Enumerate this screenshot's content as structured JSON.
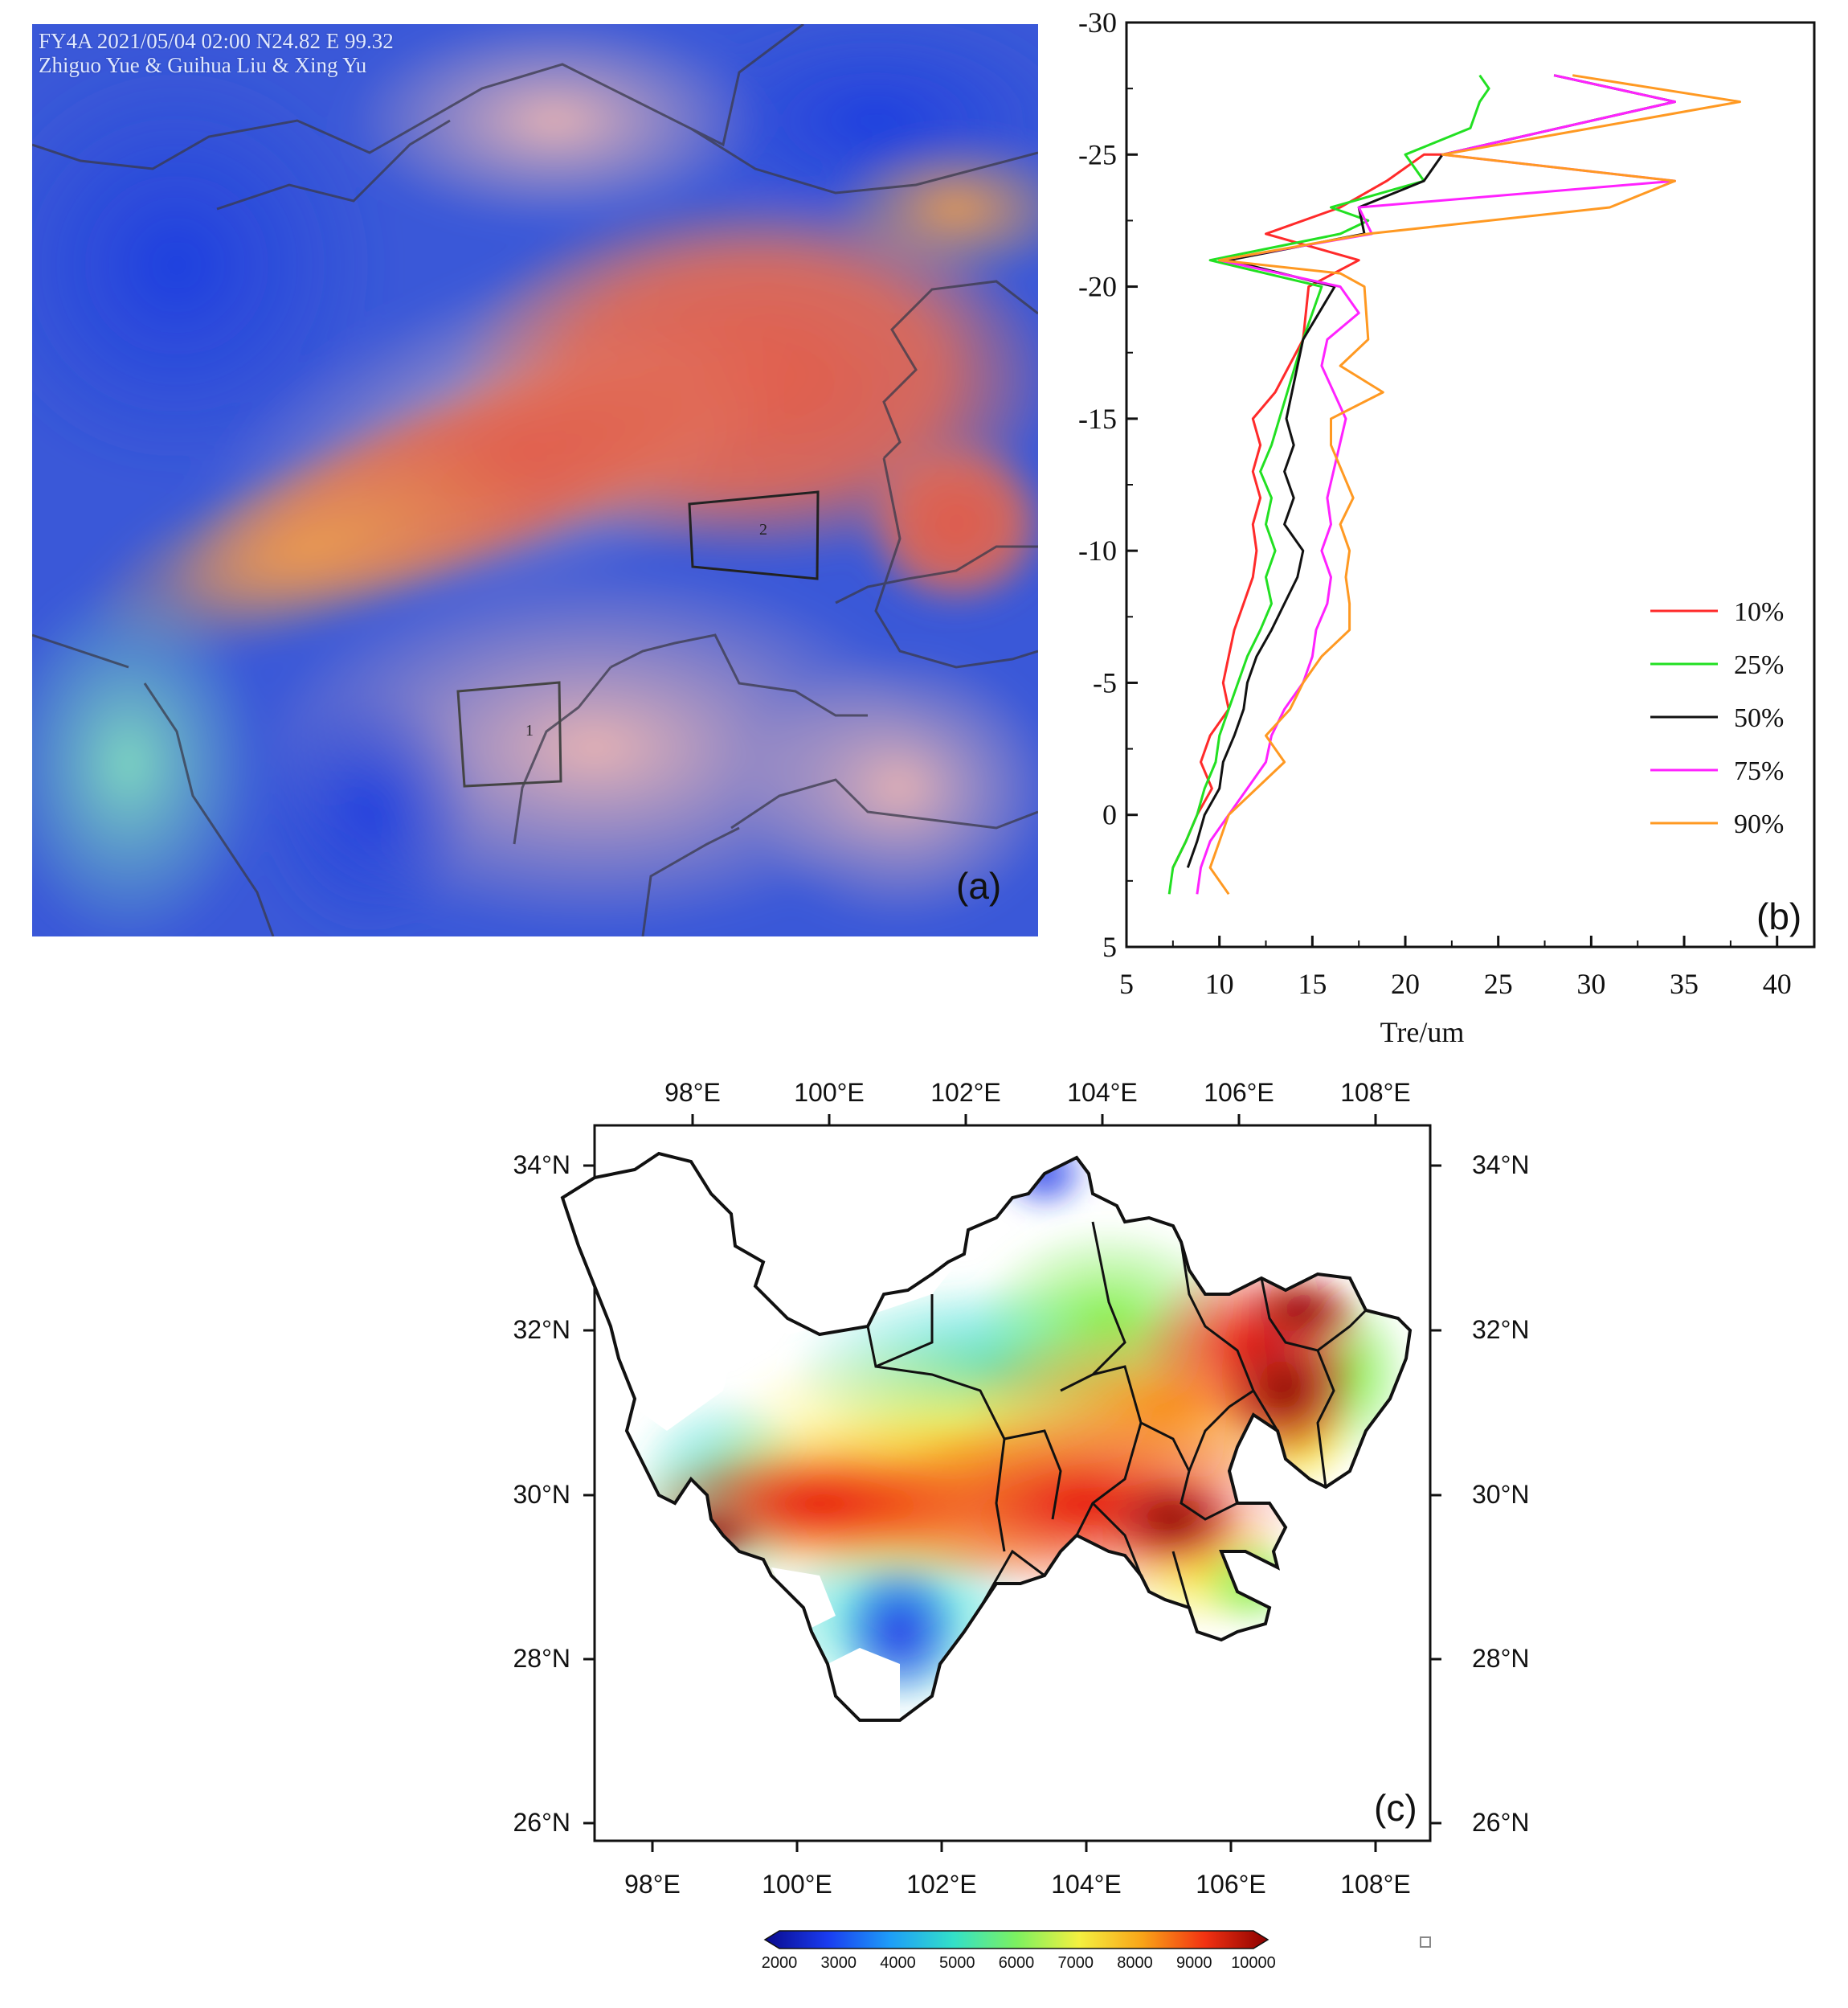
{
  "panel_a": {
    "header_line1": "FY4A 2021/05/04 02:00  N24.82 E 99.32",
    "header_line2": "Zhiguo Yue & Guihua Liu & Xing Yu",
    "box_1_label": "1",
    "box_2_label": "2",
    "panel_label": "(a)"
  },
  "panel_c": {
    "panel_label": "(c)",
    "colorbar_ticks": [
      "2000",
      "3000",
      "4000",
      "5000",
      "6000",
      "7000",
      "8000",
      "9000",
      "10000"
    ],
    "colorbar_colors": [
      "#0a0a8c",
      "#1a3cf0",
      "#1e9ef8",
      "#33e0c8",
      "#7cf060",
      "#f4f040",
      "#f9a418",
      "#f23212",
      "#8b0000"
    ],
    "x_ticks_top": [
      "98°E",
      "100°E",
      "102°E",
      "104°E",
      "106°E",
      "108°E"
    ],
    "x_ticks_bottom": [
      "98°E",
      "100°E",
      "102°E",
      "104°E",
      "106°E",
      "108°E"
    ],
    "y_ticks_left": [
      "34°N",
      "32°N",
      "30°N",
      "28°N",
      "26°N"
    ],
    "y_ticks_right": [
      "34°N",
      "32°N",
      "30°N",
      "28°N",
      "26°N"
    ]
  },
  "chart_data": [
    {
      "type": "line",
      "panel_label": "(b)",
      "xlabel": "Tre/um",
      "ylabel": "",
      "xlim": [
        5,
        42
      ],
      "ylim": [
        5,
        -30
      ],
      "y_inverted": true,
      "x_ticks": [
        "5",
        "10",
        "15",
        "20",
        "25",
        "30",
        "35",
        "40"
      ],
      "y_ticks": [
        "-30",
        "-25",
        "-20",
        "-15",
        "-10",
        "-5",
        "0",
        "5"
      ],
      "legend_position": "lower-right",
      "series": [
        {
          "name": "10%",
          "color": "#ff2a2a",
          "x": [
            7.5,
            8.2,
            8.8,
            9.6,
            9.0,
            9.5,
            10.5,
            10.2,
            10.5,
            10.8,
            11.3,
            11.8,
            12.0,
            11.8,
            12.2,
            11.8,
            12.2,
            11.8,
            13.0,
            14.5,
            14.8,
            17.5,
            12.5,
            16.5,
            19.0,
            21.0,
            22.0
          ],
          "y": [
            2,
            1,
            0,
            -1,
            -2,
            -3,
            -4,
            -5,
            -6,
            -7,
            -8,
            -9,
            -10,
            -11,
            -12,
            -13,
            -14,
            -15,
            -16,
            -18,
            -20,
            -21,
            -22,
            -23,
            -24,
            -25,
            -25
          ]
        },
        {
          "name": "25%",
          "color": "#22e022",
          "x": [
            7.3,
            7.5,
            8.2,
            8.8,
            9.2,
            9.8,
            10.0,
            10.5,
            11.0,
            11.5,
            12.2,
            12.8,
            12.5,
            13.0,
            12.5,
            12.8,
            12.2,
            12.8,
            14.5,
            15.5,
            9.5,
            16.5,
            18.0,
            16.0,
            21.0,
            20.0,
            23.5,
            24.0,
            24.5,
            24.0
          ],
          "y": [
            3,
            2,
            1,
            0,
            -1,
            -2,
            -3,
            -4,
            -5,
            -6,
            -7,
            -8,
            -9,
            -10,
            -11,
            -12,
            -13,
            -14,
            -18,
            -20,
            -21,
            -22,
            -22.5,
            -23,
            -24,
            -25,
            -26,
            -27,
            -27.5,
            -28
          ]
        },
        {
          "name": "50%",
          "color": "#111111",
          "x": [
            8.3,
            8.8,
            9.2,
            10.0,
            10.2,
            10.8,
            11.3,
            11.5,
            12.0,
            12.8,
            13.5,
            14.2,
            14.5,
            13.5,
            14.0,
            13.5,
            14.0,
            13.6,
            14.5,
            16.2,
            10.5,
            17.8,
            17.5,
            21.0,
            21.0,
            22.0,
            34.5,
            28.0
          ],
          "y": [
            2,
            1,
            0,
            -1,
            -2,
            -3,
            -4,
            -5,
            -6,
            -7,
            -8,
            -9,
            -10,
            -11,
            -12,
            -13,
            -14,
            -15,
            -18,
            -20,
            -21,
            -22,
            -23,
            -24,
            -24,
            -25,
            -27,
            -28
          ]
        },
        {
          "name": "75%",
          "color": "#ff22ff",
          "x": [
            8.8,
            9.0,
            9.5,
            10.5,
            11.5,
            12.5,
            12.8,
            13.5,
            14.5,
            15.0,
            15.2,
            15.8,
            16.0,
            15.5,
            16.0,
            15.8,
            16.8,
            15.5,
            15.8,
            17.5,
            16.5,
            10.0,
            18.2,
            17.5,
            34.5,
            22.0,
            34.5,
            28.0
          ],
          "y": [
            3,
            2,
            1,
            0,
            -1,
            -2,
            -3,
            -4,
            -5,
            -6,
            -7,
            -8,
            -9,
            -10,
            -11,
            -12,
            -15,
            -17,
            -18,
            -19,
            -20,
            -21,
            -22,
            -23,
            -24,
            -25,
            -27,
            -28
          ]
        },
        {
          "name": "90%",
          "color": "#ff9922",
          "x": [
            10.5,
            9.5,
            10.0,
            10.5,
            12.0,
            13.5,
            12.5,
            13.8,
            14.5,
            15.5,
            17.0,
            17.0,
            16.8,
            17.0,
            16.5,
            17.2,
            16.0,
            16.0,
            18.8,
            16.5,
            18.0,
            17.8,
            16.5,
            10.0,
            18.0,
            31.0,
            34.5,
            22.0,
            38.0,
            29.0
          ],
          "y": [
            3,
            2,
            1,
            0,
            -1,
            -2,
            -3,
            -4,
            -5,
            -6,
            -7,
            -8,
            -9,
            -10,
            -11,
            -12,
            -14,
            -15,
            -16,
            -17,
            -18,
            -20,
            -20.5,
            -21,
            -22,
            -23,
            -24,
            -25,
            -27,
            -28
          ]
        }
      ]
    }
  ]
}
